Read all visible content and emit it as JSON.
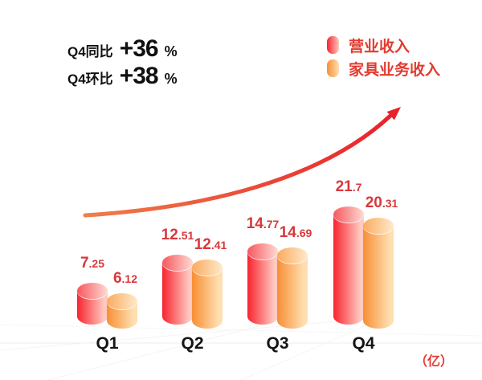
{
  "chart_data": {
    "type": "bar",
    "subtype": "3d-cylinder",
    "categories": [
      "Q1",
      "Q2",
      "Q3",
      "Q4"
    ],
    "series": [
      {
        "name": "营业收入",
        "values": [
          7.25,
          12.51,
          14.77,
          21.7
        ],
        "color": "#f8232f",
        "color_light": "#ffc9c0",
        "top_left": "#f6575f",
        "top_right": "#ffdad3"
      },
      {
        "name": "家具业务收入",
        "values": [
          6.12,
          12.41,
          14.69,
          20.31
        ],
        "color": "#f78f35",
        "color_light": "#ffdfb0",
        "top_left": "#f9ab5f",
        "top_right": "#ffe9ca"
      }
    ],
    "unit_label": "（亿）",
    "stats": [
      {
        "label": "Q4同比",
        "value": "+36",
        "unit": "%"
      },
      {
        "label": "Q4环比",
        "value": "+38",
        "unit": "%"
      }
    ],
    "legend_position": "top-right",
    "grid": false,
    "annotation": "upward trend arrow"
  },
  "colors": {
    "value_label": "#d7383b",
    "legend_text": "#e23b30",
    "stat_text": "#111111",
    "category_text": "#141414",
    "arrow_start": "#ef7e4a",
    "arrow_end": "#e8222b"
  }
}
